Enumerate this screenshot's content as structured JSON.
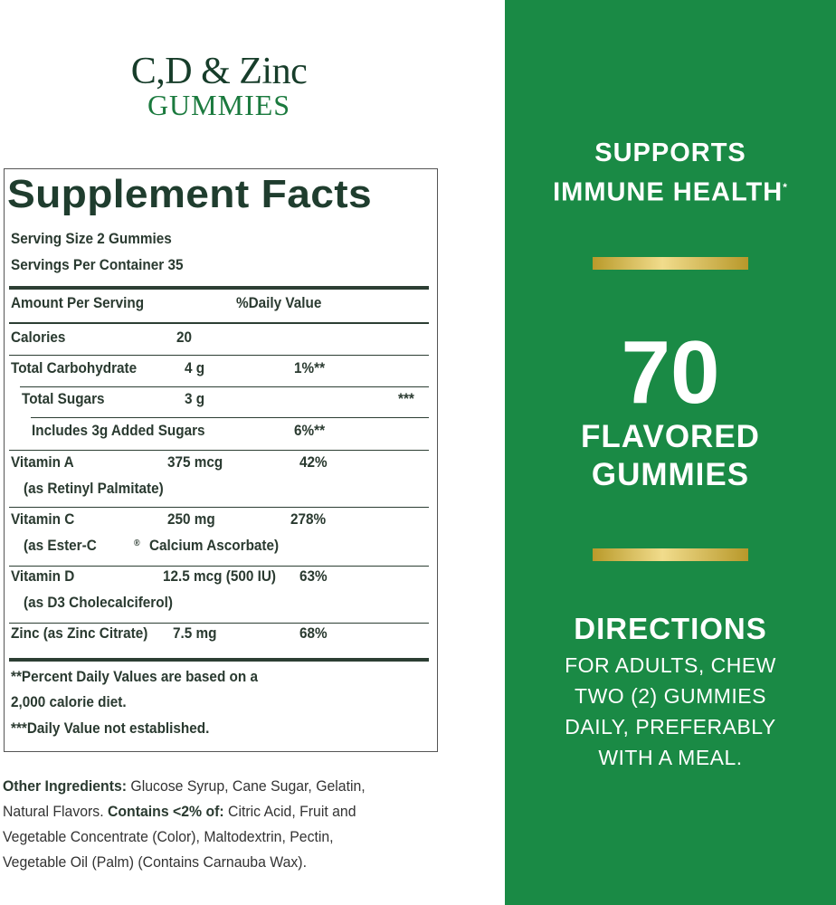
{
  "brand": {
    "line1": "C,D & Zinc",
    "line2": "GUMMIES"
  },
  "facts": {
    "title": "Supplement Facts",
    "serving_size": "Serving Size 2 Gummies",
    "servings_per_container": "Servings Per Container 35",
    "header_amount": "Amount Per Serving",
    "header_dv": "%Daily Value",
    "rows": [
      {
        "name": "Calories",
        "amount": "20",
        "dv": "",
        "extra": ""
      },
      {
        "name": "Total Carbohydrate",
        "amount": "4 g",
        "dv": "1%**",
        "extra": ""
      },
      {
        "name": "Total Sugars",
        "amount": "3 g",
        "dv": "",
        "extra": "***"
      },
      {
        "name": "Includes 3g Added Sugars",
        "amount": "",
        "dv": "6%**",
        "extra": ""
      },
      {
        "name": "Vitamin A",
        "amount": "375 mcg",
        "dv": "42%",
        "sub": "(as Retinyl Palmitate)"
      },
      {
        "name": "Vitamin C",
        "amount": "250 mg",
        "dv": "278%",
        "sub": "(as Ester-C",
        "sub_mark": "®",
        "sub2": "Calcium Ascorbate)"
      },
      {
        "name": "Vitamin D",
        "amount": "12.5 mcg (500 IU)",
        "dv": "63%",
        "sub": "(as D3 Cholecalciferol)"
      },
      {
        "name": "Zinc (as Zinc Citrate)",
        "amount": "7.5 mg",
        "dv": "68%"
      }
    ],
    "footnote1": "**Percent Daily Values are based on a",
    "footnote2": "2,000 calorie diet.",
    "footnote3": "***Daily Value not established."
  },
  "ingredients": {
    "label1": "Other Ingredients:",
    "text1": " Glucose Syrup, Cane Sugar, Gelatin, Natural Flavors. ",
    "label2": "Contains <2% of:",
    "text2": " Citric Acid, Fruit and Vegetable Concentrate (Color), Maltodextrin, Pectin, Vegetable Oil (Palm) (Contains Carnauba Wax)."
  },
  "panel": {
    "claim1": "SUPPORTS",
    "claim2": "IMMUNE HEALTH",
    "claim_mark": "*",
    "count": "70",
    "count_label1": "FLAVORED",
    "count_label2": "GUMMIES",
    "directions_title": "DIRECTIONS",
    "directions": [
      "FOR ADULTS, CHEW",
      "TWO (2) GUMMIES",
      "DAILY, PREFERABLY",
      "WITH A MEAL."
    ]
  },
  "colors": {
    "panel_green": "#1a8a45",
    "gold": "#d9c160",
    "text_green": "#1f3d2e"
  }
}
